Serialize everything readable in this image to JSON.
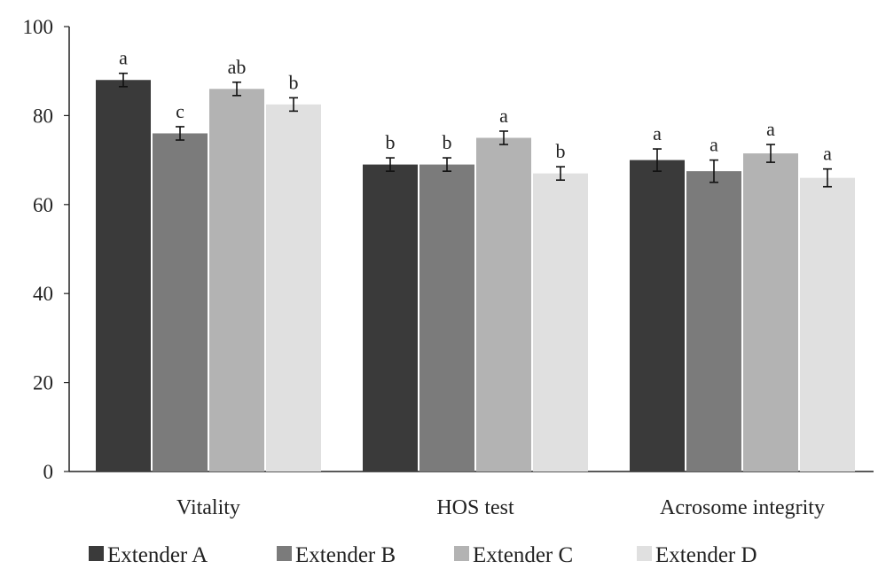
{
  "chart_data": {
    "type": "bar",
    "title": "",
    "xlabel": "",
    "ylabel": "",
    "ylim": [
      0,
      100
    ],
    "yticks": [
      0,
      20,
      40,
      60,
      80,
      100
    ],
    "grid": false,
    "legend_position": "bottom",
    "categories": [
      "Vitality",
      "HOS test",
      "Acrosome integrity"
    ],
    "series": [
      {
        "name": "Extender A",
        "color": "#3a3a3a",
        "values": [
          88,
          69,
          70
        ],
        "errors": [
          1.5,
          1.5,
          2.5
        ],
        "sig": [
          "a",
          "b",
          "a"
        ]
      },
      {
        "name": "Extender B",
        "color": "#7b7b7b",
        "values": [
          76,
          69,
          67.5
        ],
        "errors": [
          1.5,
          1.5,
          2.5
        ],
        "sig": [
          "c",
          "b",
          "a"
        ]
      },
      {
        "name": "Extender C",
        "color": "#b3b3b3",
        "values": [
          86,
          75,
          71.5
        ],
        "errors": [
          1.5,
          1.5,
          2.0
        ],
        "sig": [
          "ab",
          "a",
          "a"
        ]
      },
      {
        "name": "Extender D",
        "color": "#e0e0e0",
        "values": [
          82.5,
          67,
          66
        ],
        "errors": [
          1.5,
          1.5,
          2.0
        ],
        "sig": [
          "b",
          "b",
          "a"
        ]
      }
    ]
  }
}
